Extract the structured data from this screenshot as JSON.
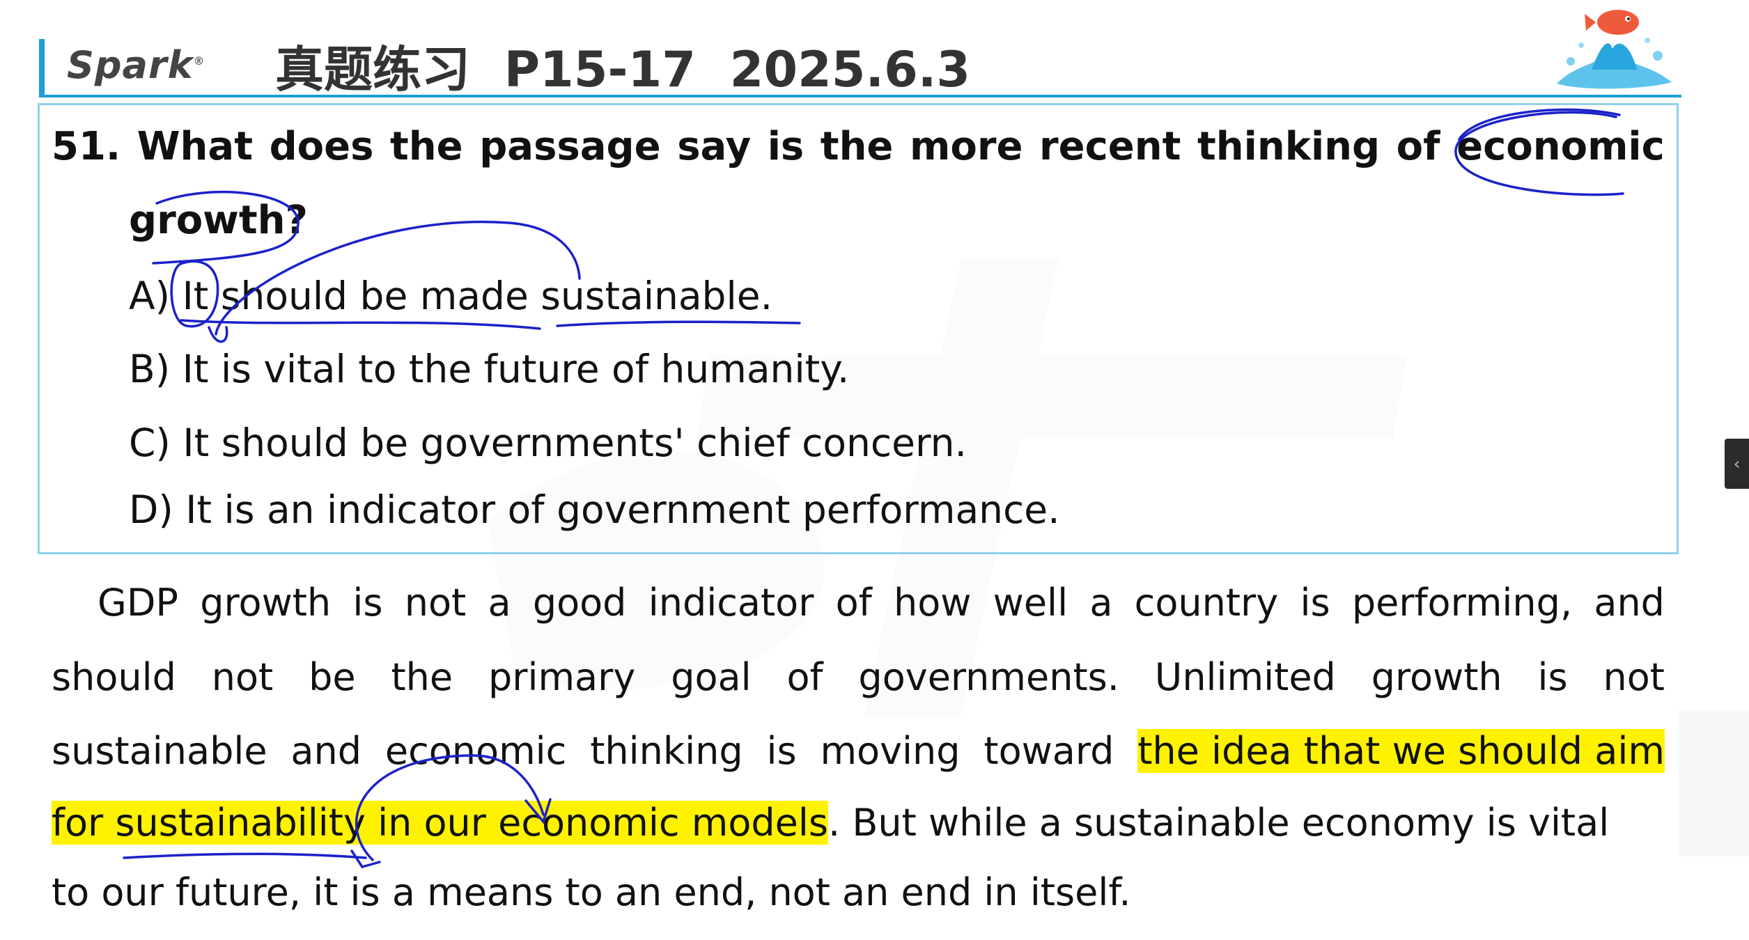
{
  "header": {
    "logo_text": "Spark",
    "logo_mark": "®",
    "title": "真题练习  P15-17  2025.6.3"
  },
  "question": {
    "line1_words": [
      "51.",
      "What",
      "does",
      "the",
      "passage",
      "say",
      "is",
      "the",
      "more",
      "recent",
      "thinking",
      "of",
      "economic"
    ],
    "line2": "growth?",
    "options": {
      "a": "A) It should be made sustainable.",
      "b": "B) It is vital to the future of humanity.",
      "c": "C) It should be governments' chief concern.",
      "d": "D) It is an indicator of government performance."
    }
  },
  "passage": {
    "line1_words": [
      "GDP",
      "growth",
      "is",
      "not",
      "a",
      "good",
      "indicator",
      "of",
      "how",
      "well",
      "a",
      "country",
      "is",
      "performing,",
      "and"
    ],
    "line2_words": [
      "should",
      "not",
      "be",
      "the",
      "primary",
      "goal",
      "of",
      "governments.",
      "Unlimited",
      "growth",
      "is",
      "not"
    ],
    "line3_plain_words": [
      "sustainable",
      "and",
      "economic",
      "thinking",
      "is",
      "moving",
      "toward"
    ],
    "line3_highlight": "the idea that we should aim",
    "line4_highlight": "for sustainability in our economic models",
    "line4_rest": ". But while a sustainable economy is vital",
    "line5": "to our future, it is a means to an end, not an end in itself."
  },
  "colors": {
    "accent": "#1e9fd4",
    "highlight": "#fff200",
    "ink": "#1a22c9"
  },
  "icons": {
    "decoration": "fish-splash-icon",
    "side_tab": "chevron-left-icon"
  }
}
